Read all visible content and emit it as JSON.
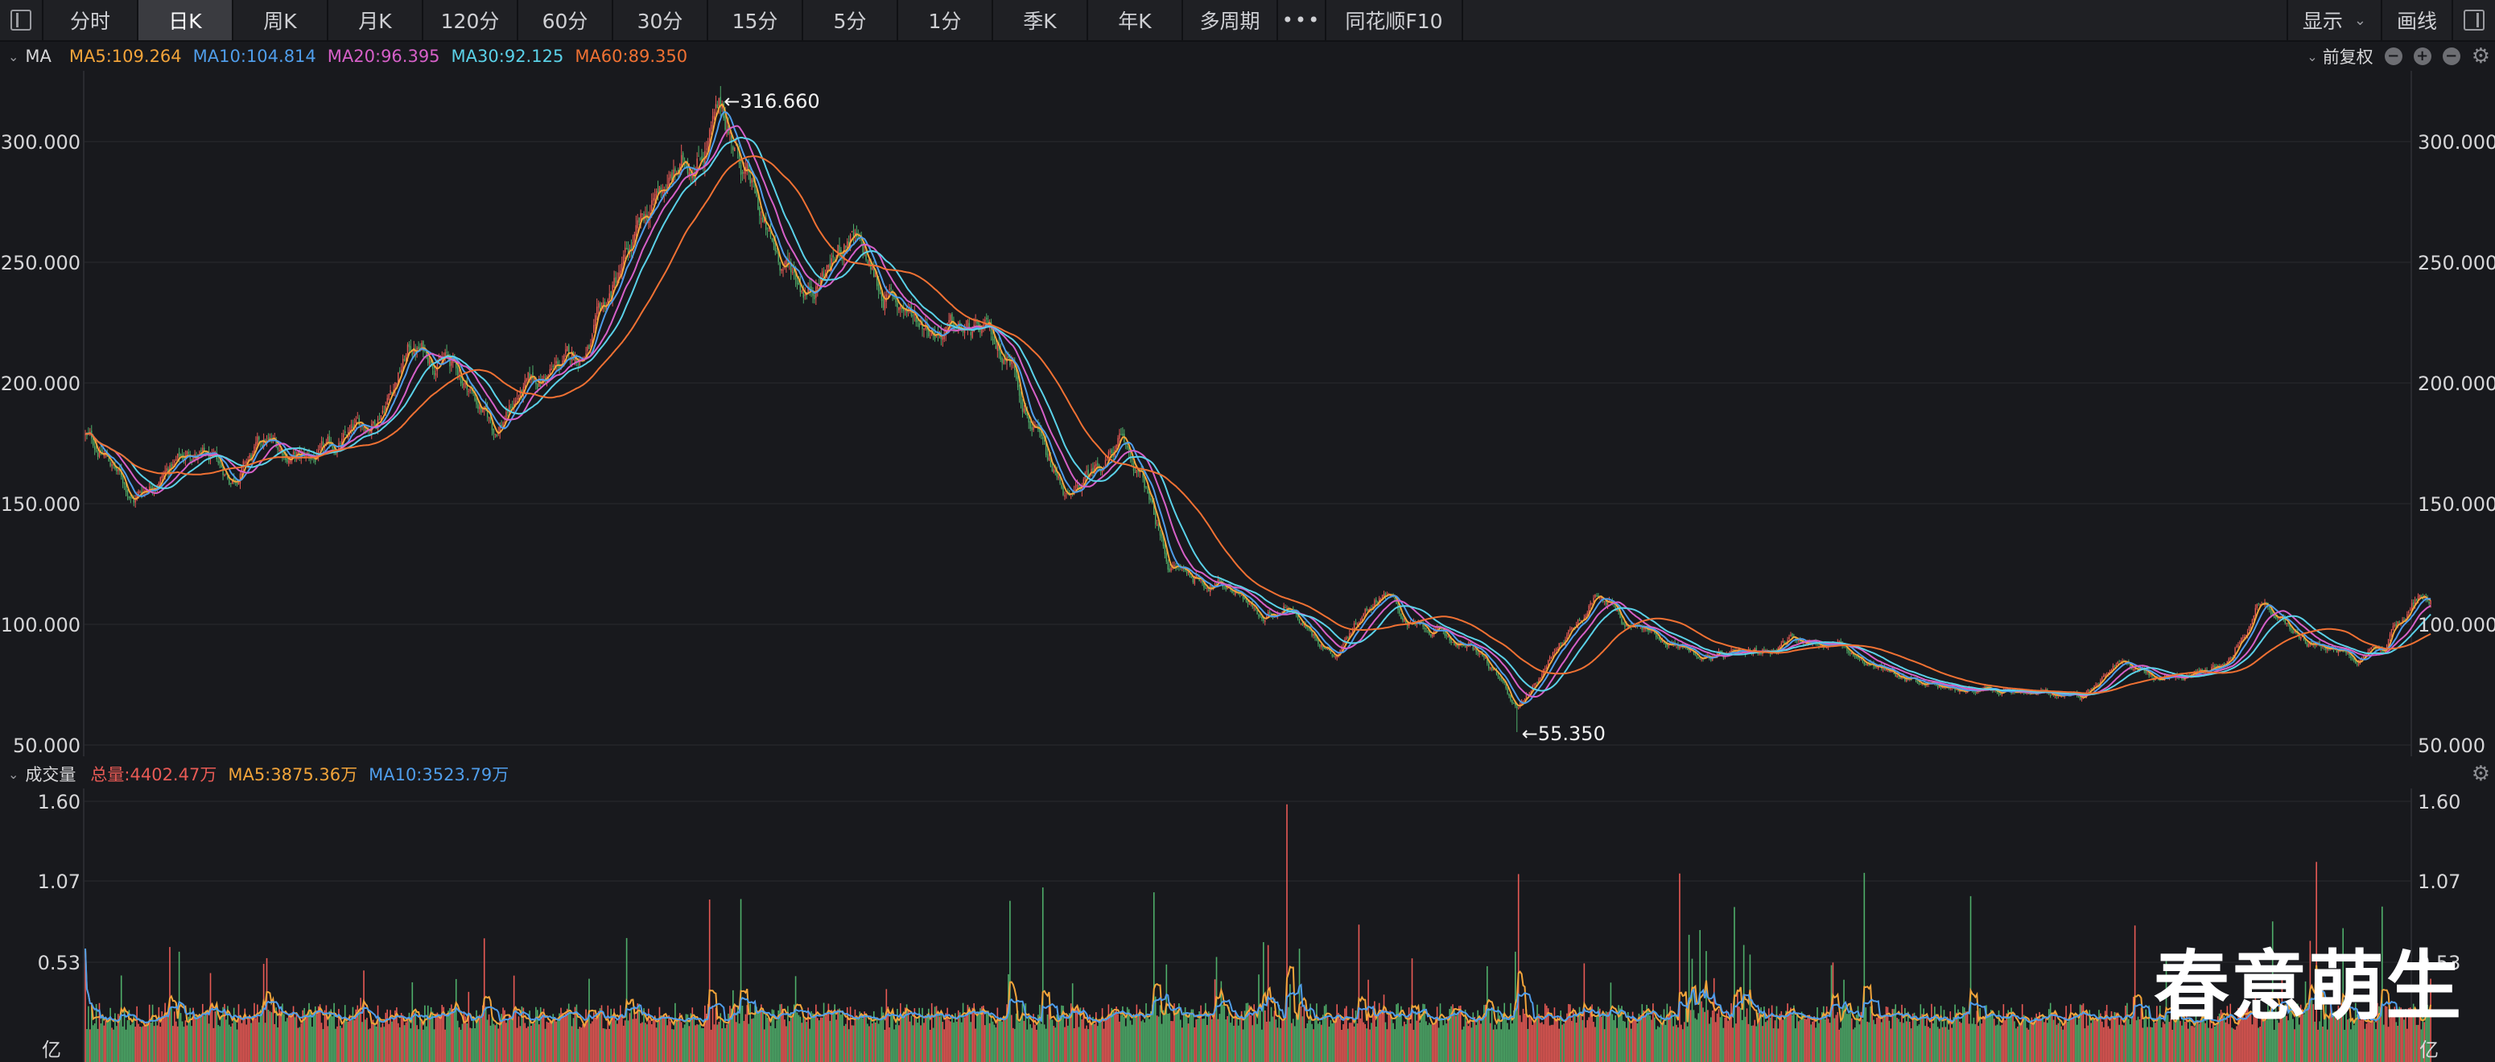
{
  "toolbar": {
    "tabs": [
      "分时",
      "日K",
      "周K",
      "月K",
      "120分",
      "60分",
      "30分",
      "15分",
      "5分",
      "1分",
      "季K",
      "年K",
      "多周期"
    ],
    "active_tab": "日K",
    "more": "•••",
    "f10": "同花顺F10",
    "display": "显示",
    "draw": "画线"
  },
  "price_panel": {
    "label": "MA",
    "ma5": "MA5:109.264",
    "ma10": "MA10:104.814",
    "ma20": "MA20:96.395",
    "ma30": "MA30:92.125",
    "ma60": "MA60:89.350",
    "adjust": "前复权",
    "high_label": "←316.660",
    "low_label": "←55.350"
  },
  "volume_panel": {
    "label": "成交量",
    "total": "总量:4402.47万",
    "ma5": "MA5:3875.36万",
    "ma10": "MA10:3523.79万",
    "unit": "亿"
  },
  "watermark": "春意萌生",
  "colors": {
    "up": "#e85a55",
    "down": "#4fae6a",
    "ma5": "#f2a43a",
    "ma10": "#4f9dea",
    "ma20": "#d660c8",
    "ma30": "#5ad1e8",
    "ma60": "#f07133",
    "background": "#18191d"
  },
  "chart_data": [
    {
      "type": "line",
      "name": "price",
      "ylim": [
        50,
        320
      ],
      "y_ticks": [
        "300.000",
        "250.000",
        "200.000",
        "150.000",
        "100.000",
        "50.000"
      ],
      "tick_values": [
        300,
        250,
        200,
        150,
        100,
        50
      ],
      "grid": true,
      "high": 316.66,
      "low": 55.35,
      "path_points": [
        [
          0,
          178
        ],
        [
          0.01,
          168
        ],
        [
          0.02,
          152
        ],
        [
          0.03,
          162
        ],
        [
          0.045,
          172
        ],
        [
          0.06,
          160
        ],
        [
          0.075,
          175
        ],
        [
          0.09,
          168
        ],
        [
          0.1,
          170
        ],
        [
          0.12,
          185
        ],
        [
          0.135,
          215
        ],
        [
          0.15,
          210
        ],
        [
          0.16,
          198
        ],
        [
          0.17,
          180
        ],
        [
          0.18,
          195
        ],
        [
          0.195,
          205
        ],
        [
          0.21,
          215
        ],
        [
          0.22,
          240
        ],
        [
          0.23,
          260
        ],
        [
          0.24,
          280
        ],
        [
          0.25,
          290
        ],
        [
          0.265,
          312
        ],
        [
          0.275,
          285
        ],
        [
          0.285,
          255
        ],
        [
          0.3,
          240
        ],
        [
          0.31,
          250
        ],
        [
          0.318,
          262
        ],
        [
          0.33,
          238
        ],
        [
          0.345,
          228
        ],
        [
          0.36,
          222
        ],
        [
          0.375,
          218
        ],
        [
          0.385,
          210
        ],
        [
          0.392,
          190
        ],
        [
          0.4,
          165
        ],
        [
          0.41,
          150
        ],
        [
          0.42,
          165
        ],
        [
          0.43,
          175
        ],
        [
          0.44,
          158
        ],
        [
          0.45,
          125
        ],
        [
          0.465,
          118
        ],
        [
          0.48,
          115
        ],
        [
          0.49,
          100
        ],
        [
          0.5,
          110
        ],
        [
          0.51,
          96
        ],
        [
          0.52,
          88
        ],
        [
          0.53,
          104
        ],
        [
          0.54,
          115
        ],
        [
          0.55,
          100
        ],
        [
          0.565,
          95
        ],
        [
          0.58,
          88
        ],
        [
          0.595,
          65
        ],
        [
          0.605,
          80
        ],
        [
          0.615,
          95
        ],
        [
          0.63,
          115
        ],
        [
          0.64,
          100
        ],
        [
          0.655,
          95
        ],
        [
          0.67,
          88
        ],
        [
          0.69,
          85
        ],
        [
          0.71,
          95
        ],
        [
          0.73,
          90
        ],
        [
          0.75,
          80
        ],
        [
          0.77,
          75
        ],
        [
          0.79,
          72
        ],
        [
          0.81,
          71
        ],
        [
          0.83,
          70
        ],
        [
          0.845,
          85
        ],
        [
          0.86,
          78
        ],
        [
          0.875,
          78
        ],
        [
          0.89,
          85
        ],
        [
          0.905,
          112
        ],
        [
          0.915,
          98
        ],
        [
          0.93,
          90
        ],
        [
          0.945,
          85
        ],
        [
          0.955,
          88
        ],
        [
          0.965,
          105
        ],
        [
          0.97,
          113
        ]
      ]
    },
    {
      "type": "bar",
      "name": "volume",
      "ylim": [
        0,
        1.6
      ],
      "y_ticks": [
        "1.60",
        "1.07",
        "0.53"
      ],
      "tick_values": [
        1.6,
        1.07,
        0.53
      ],
      "unit": "亿"
    }
  ]
}
